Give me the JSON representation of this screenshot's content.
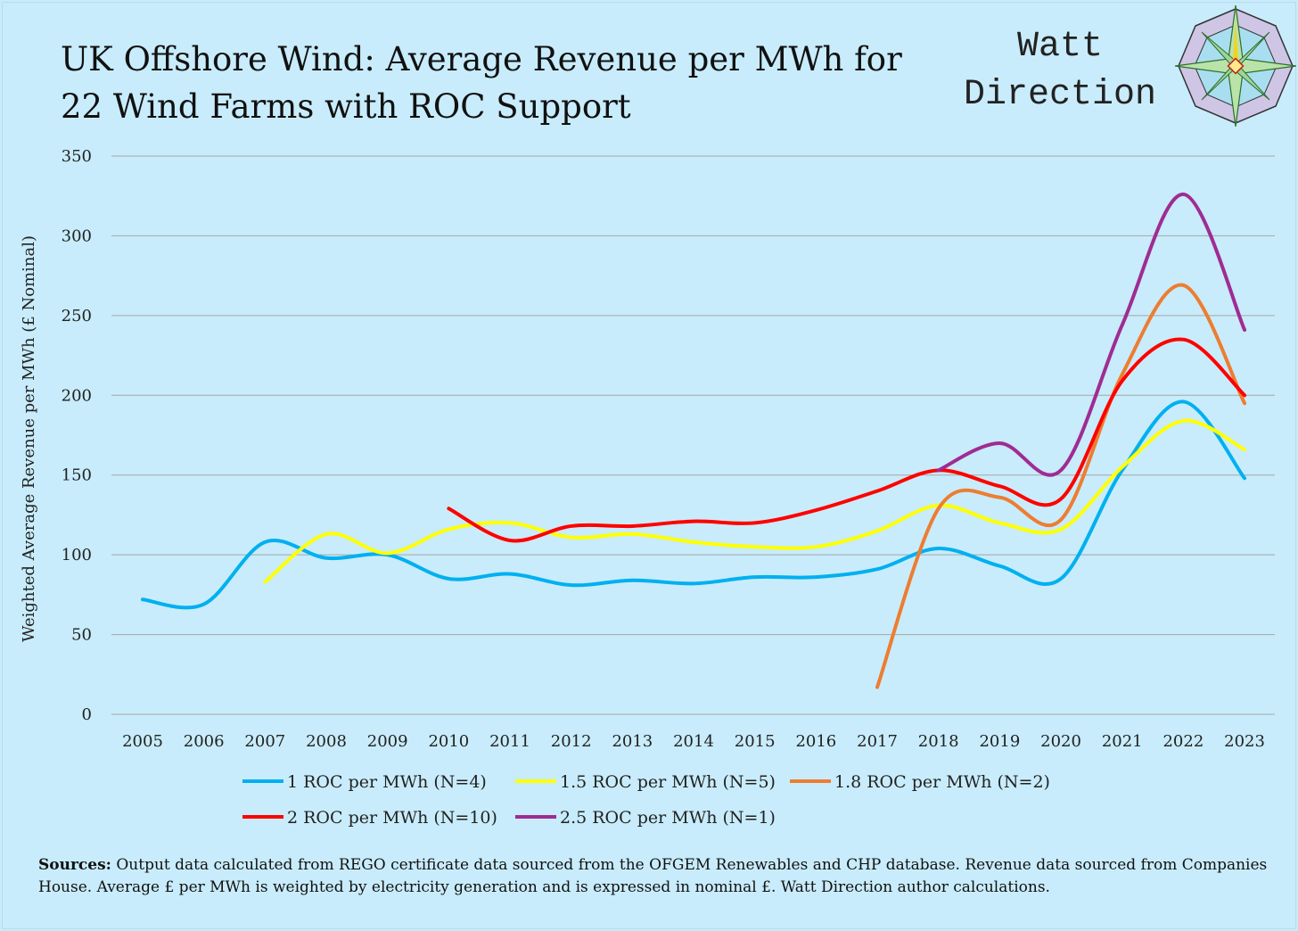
{
  "title": "UK Offshore Wind: Average Revenue per MWh for 22 Wind Farms with ROC Support",
  "logo": {
    "line1": "Watt",
    "line2": "Direction"
  },
  "footer": {
    "label": "Sources:",
    "text": " Output data calculated from REGO certificate data sourced from the OFGEM Renewables and CHP database. Revenue data sourced from Companies House. Average £ per MWh is weighted by electricity generation and is expressed in nominal £. Watt Direction author calculations."
  },
  "chart_data": {
    "type": "line",
    "title": "UK Offshore Wind: Average Revenue per MWh for 22 Wind Farms with ROC Support",
    "xlabel": "",
    "ylabel": "Weighted Average Revenue per MWh (£ Nominal)",
    "ylim": [
      0,
      350
    ],
    "yticks": [
      0,
      50,
      100,
      150,
      200,
      250,
      300,
      350
    ],
    "grid": true,
    "legend_position": "bottom",
    "categories": [
      "2005",
      "2006",
      "2007",
      "2008",
      "2009",
      "2010",
      "2011",
      "2012",
      "2013",
      "2014",
      "2015",
      "2016",
      "2017",
      "2018",
      "2019",
      "2020",
      "2021",
      "2022",
      "2023"
    ],
    "series": [
      {
        "name": "1 ROC per MWh (N=4)",
        "color": "#00b0f0",
        "values": [
          72,
          69,
          108,
          98,
          100,
          85,
          88,
          81,
          84,
          82,
          86,
          86,
          91,
          104,
          93,
          85,
          153,
          196,
          148
        ]
      },
      {
        "name": "1.5 ROC per MWh (N=5)",
        "color": "#ffff00",
        "values": [
          null,
          null,
          83,
          113,
          101,
          116,
          120,
          111,
          113,
          108,
          105,
          105,
          115,
          131,
          120,
          116,
          155,
          184,
          166
        ]
      },
      {
        "name": "1.8 ROC per MWh (N=2)",
        "color": "#ed7d31",
        "values": [
          null,
          null,
          null,
          null,
          null,
          null,
          null,
          null,
          null,
          null,
          null,
          null,
          17,
          129,
          136,
          122,
          213,
          269,
          195
        ]
      },
      {
        "name": "2 ROC per MWh (N=10)",
        "color": "#ff0000",
        "values": [
          null,
          null,
          null,
          null,
          null,
          129,
          109,
          118,
          118,
          121,
          120,
          128,
          140,
          153,
          143,
          135,
          209,
          235,
          200
        ]
      },
      {
        "name": "2.5 ROC per MWh (N=1)",
        "color": "#a02b93",
        "values": [
          null,
          null,
          null,
          null,
          null,
          null,
          null,
          null,
          null,
          null,
          null,
          null,
          null,
          153,
          170,
          153,
          244,
          326,
          241
        ]
      }
    ]
  }
}
